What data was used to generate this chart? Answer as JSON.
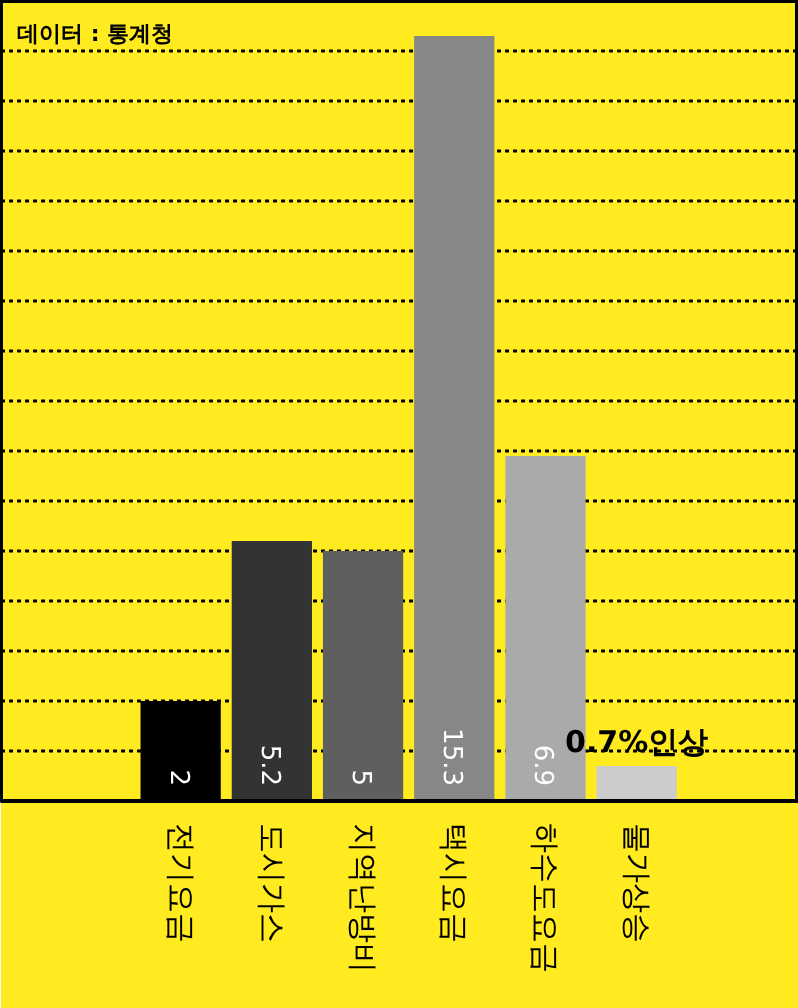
{
  "chart_data": {
    "type": "bar",
    "categories": [
      "전기요금",
      "도시가스",
      "지역난방비",
      "택시요금",
      "하수도요금",
      "물가상승"
    ],
    "values": [
      2,
      5.2,
      5,
      15.3,
      6.9,
      0.7
    ],
    "colors": [
      "#000000",
      "#333333",
      "#5f5f5f",
      "#878787",
      "#aaaaaa",
      "#cccccc"
    ],
    "value_labels": [
      "2",
      "5.2",
      "5",
      "15.3",
      "6.9",
      "0.7%인상"
    ],
    "ylim": [
      0,
      16
    ],
    "yticks": [
      {
        "value": 1,
        "label": null
      },
      {
        "value": 2,
        "label": null
      },
      {
        "value": 3,
        "label": null
      },
      {
        "value": 4,
        "label": null
      },
      {
        "value": 5,
        "label": null
      },
      {
        "value": 6,
        "label": null
      },
      {
        "value": 7,
        "label": null
      },
      {
        "value": 8,
        "label": null
      },
      {
        "value": 9,
        "label": null
      },
      {
        "value": 10,
        "label": null
      },
      {
        "value": 11,
        "label": null
      },
      {
        "value": 12,
        "label": null
      },
      {
        "value": 13,
        "label": null
      },
      {
        "value": 14,
        "label": null
      },
      {
        "value": 15,
        "label": null
      }
    ],
    "grid": "y",
    "tick_labels": "x",
    "annotations": [
      "데이터 : 통계청"
    ]
  }
}
